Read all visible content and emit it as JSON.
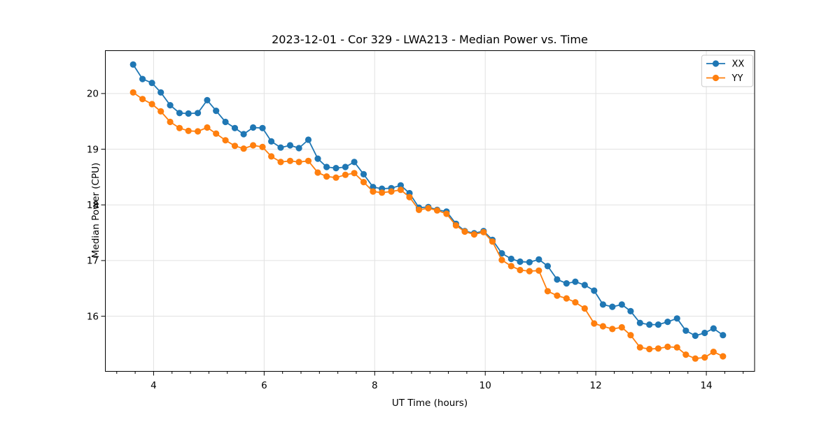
{
  "figure": {
    "background": "#ffffff",
    "text_color": "#000000",
    "spine_color": "#000000",
    "grid_color": "#e1e1e1"
  },
  "chart_data": {
    "type": "line",
    "title": "2023-12-01 - Cor 329 - LWA213 - Median Power vs. Time",
    "xlabel": "UT Time (hours)",
    "ylabel": "Median Power (CPU)",
    "xlim": [
      3.127,
      14.873
    ],
    "ylim": [
      15.01,
      20.77
    ],
    "x_major_ticks": [
      4,
      6,
      8,
      10,
      12,
      14
    ],
    "x_tick_labels": [
      "4",
      "6",
      "8",
      "10",
      "12",
      "14"
    ],
    "x_minor_step": 0.33333,
    "y_major_ticks": [
      16,
      17,
      18,
      19,
      20
    ],
    "y_tick_labels": [
      "16",
      "17",
      "18",
      "19",
      "20"
    ],
    "grid": true,
    "legend_position": "upper right",
    "marker": "o",
    "x": [
      3.63,
      3.8,
      3.97,
      4.13,
      4.3,
      4.47,
      4.63,
      4.8,
      4.97,
      5.13,
      5.3,
      5.47,
      5.63,
      5.8,
      5.97,
      6.13,
      6.3,
      6.47,
      6.63,
      6.8,
      6.97,
      7.13,
      7.3,
      7.47,
      7.63,
      7.8,
      7.97,
      8.13,
      8.3,
      8.47,
      8.63,
      8.8,
      8.97,
      9.13,
      9.3,
      9.47,
      9.63,
      9.8,
      9.97,
      10.13,
      10.3,
      10.47,
      10.63,
      10.8,
      10.97,
      11.13,
      11.3,
      11.47,
      11.63,
      11.8,
      11.97,
      12.13,
      12.3,
      12.47,
      12.63,
      12.8,
      12.97,
      13.13,
      13.3,
      13.47,
      13.63,
      13.8,
      13.97,
      14.13,
      14.3
    ],
    "series": [
      {
        "name": "XX",
        "color": "#1f77b4",
        "values": [
          20.52,
          20.26,
          20.19,
          20.02,
          19.79,
          19.65,
          19.64,
          19.65,
          19.88,
          19.69,
          19.49,
          19.38,
          19.27,
          19.39,
          19.38,
          19.14,
          19.03,
          19.07,
          19.02,
          19.17,
          18.83,
          18.68,
          18.66,
          18.68,
          18.77,
          18.55,
          18.32,
          18.29,
          18.3,
          18.35,
          18.21,
          17.95,
          17.96,
          17.91,
          17.88,
          17.66,
          17.53,
          17.49,
          17.53,
          17.37,
          17.13,
          17.03,
          16.98,
          16.97,
          17.02,
          16.9,
          16.66,
          16.59,
          16.62,
          16.56,
          16.46,
          16.21,
          16.17,
          16.21,
          16.09,
          15.88,
          15.85,
          15.85,
          15.9,
          15.96,
          15.74,
          15.65,
          15.7,
          15.78,
          15.66
        ]
      },
      {
        "name": "YY",
        "color": "#ff7f0e",
        "values": [
          20.02,
          19.9,
          19.81,
          19.68,
          19.49,
          19.38,
          19.33,
          19.32,
          19.39,
          19.28,
          19.16,
          19.06,
          19.01,
          19.07,
          19.04,
          18.87,
          18.77,
          18.79,
          18.77,
          18.79,
          18.58,
          18.51,
          18.49,
          18.54,
          18.57,
          18.41,
          18.24,
          18.22,
          18.24,
          18.27,
          18.14,
          17.91,
          17.94,
          17.9,
          17.84,
          17.63,
          17.52,
          17.47,
          17.51,
          17.34,
          17.01,
          16.9,
          16.83,
          16.81,
          16.82,
          16.45,
          16.37,
          16.32,
          16.25,
          16.14,
          15.87,
          15.82,
          15.77,
          15.8,
          15.66,
          15.44,
          15.41,
          15.42,
          15.45,
          15.44,
          15.31,
          15.24,
          15.26,
          15.36,
          15.28
        ]
      }
    ]
  }
}
